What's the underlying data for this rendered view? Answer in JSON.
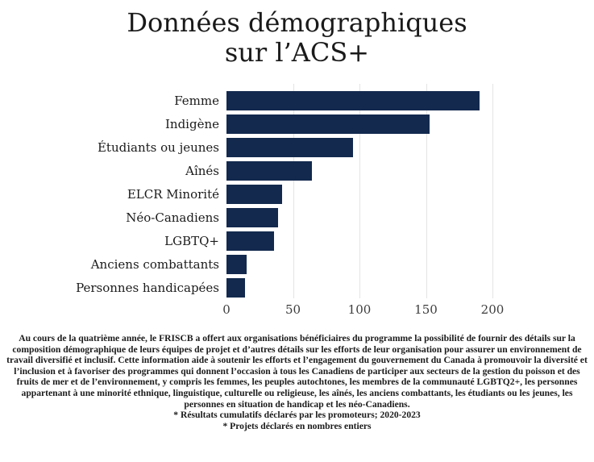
{
  "title": {
    "text": "Données démographiques sur l’ACS+",
    "line1": "Données démographiques",
    "line2": "sur l’ACS+"
  },
  "chart_data": {
    "type": "bar",
    "orientation": "horizontal",
    "title": "Données démographiques sur l’ACS+",
    "categories": [
      "Femme",
      "Indigène",
      "Étudiants ou jeunes",
      "Aînés",
      "ELCR Minorité",
      "Néo-Canadiens",
      "LGBTQ+",
      "Anciens combattants",
      "Personnes handicapées"
    ],
    "values": [
      190,
      153,
      95,
      64,
      42,
      39,
      36,
      15,
      14
    ],
    "x_ticks": [
      0,
      50,
      100,
      150,
      200
    ],
    "xlim": [
      0,
      230
    ],
    "grid": true,
    "legend": false,
    "bar_color": "#13294e",
    "gridline_color": "#e4e4e4"
  },
  "footer": {
    "paragraph": "Au cours de la quatrième année, le FRISCB a offert aux organisations bénéficiaires du programme la possibilité de fournir des détails sur la composition démographique de leurs équipes de projet et d’autres détails sur les efforts de leur organisation pour assurer un environnement de travail diversifié et inclusif. Cette information aide à soutenir les efforts et l’engagement du gouvernement du Canada à promouvoir la diversité et l’inclusion et à favoriser des programmes qui donnent l’occasion à tous les Canadiens de participer aux secteurs de la gestion du poisson et des fruits de mer et de l’environnement, y compris les femmes, les peuples autochtones, les membres de la communauté LGBTQ2+, les personnes appartenant à une minorité ethnique, linguistique, culturelle ou religieuse, les aînés, les anciens combattants, les étudiants ou les jeunes, les personnes en situation de handicap et les néo-Canadiens.",
    "footnote1": "* Résultats cumulatifs déclarés par les promoteurs; 2020-2023",
    "footnote2": "* Projets déclarés en nombres entiers"
  }
}
